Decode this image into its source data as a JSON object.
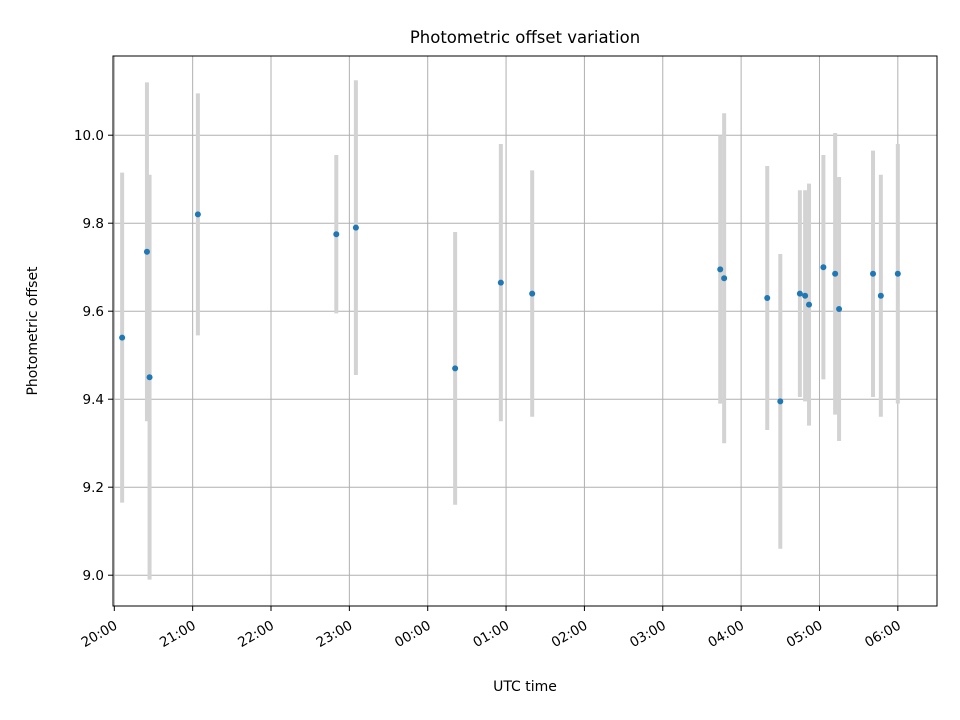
{
  "chart_data": {
    "type": "scatter",
    "title": "Photometric offset variation",
    "xlabel": "UTC time",
    "ylabel": "Photometric offset",
    "grid": true,
    "legend": "none",
    "x_ticks": [
      "20:00",
      "21:00",
      "22:00",
      "23:00",
      "00:00",
      "01:00",
      "02:00",
      "03:00",
      "04:00",
      "05:00",
      "06:00"
    ],
    "y_ticks": [
      "9.0",
      "9.2",
      "9.4",
      "9.6",
      "9.8",
      "10.0"
    ],
    "xlim": [
      "19:59",
      "06:30"
    ],
    "ylim": [
      8.93,
      10.18
    ],
    "colors": {
      "point": "#1f77b4",
      "errorbar": "#d3d3d3",
      "grid": "#b0b0b0"
    },
    "series": [
      {
        "points": [
          {
            "x": "20:06",
            "y": 9.54,
            "err": 0.375
          },
          {
            "x": "20:25",
            "y": 9.735,
            "err": 0.385
          },
          {
            "x": "20:27",
            "y": 9.45,
            "err": 0.46
          },
          {
            "x": "21:04",
            "y": 9.82,
            "err": 0.275
          },
          {
            "x": "22:50",
            "y": 9.775,
            "err": 0.18
          },
          {
            "x": "23:05",
            "y": 9.79,
            "err": 0.335
          },
          {
            "x": "00:21",
            "y": 9.47,
            "err": 0.31
          },
          {
            "x": "00:56",
            "y": 9.665,
            "err": 0.315
          },
          {
            "x": "01:20",
            "y": 9.64,
            "err": 0.28
          },
          {
            "x": "03:44",
            "y": 9.695,
            "err": 0.305
          },
          {
            "x": "03:47",
            "y": 9.675,
            "err": 0.375
          },
          {
            "x": "04:20",
            "y": 9.63,
            "err": 0.3
          },
          {
            "x": "04:30",
            "y": 9.395,
            "err": 0.335
          },
          {
            "x": "04:45",
            "y": 9.64,
            "err": 0.235
          },
          {
            "x": "04:49",
            "y": 9.635,
            "err": 0.24
          },
          {
            "x": "04:52",
            "y": 9.615,
            "err": 0.275
          },
          {
            "x": "05:03",
            "y": 9.7,
            "err": 0.255
          },
          {
            "x": "05:12",
            "y": 9.685,
            "err": 0.32
          },
          {
            "x": "05:15",
            "y": 9.605,
            "err": 0.3
          },
          {
            "x": "05:41",
            "y": 9.685,
            "err": 0.28
          },
          {
            "x": "05:47",
            "y": 9.635,
            "err": 0.275
          },
          {
            "x": "06:00",
            "y": 9.685,
            "err": 0.295
          }
        ]
      }
    ]
  }
}
